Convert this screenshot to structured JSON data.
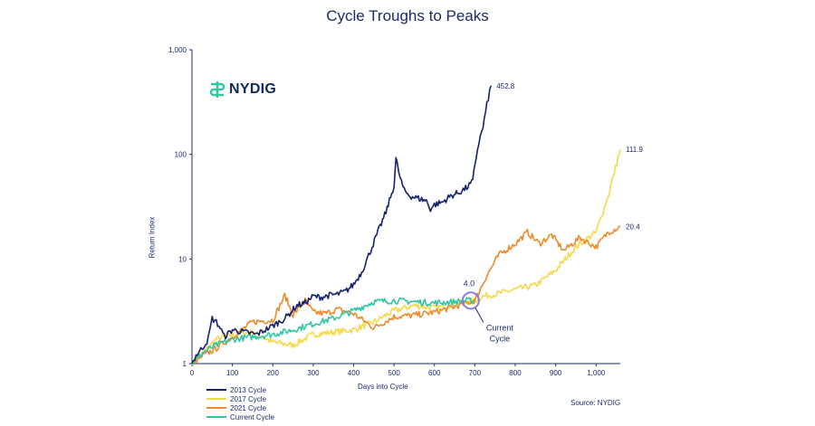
{
  "chart_data": {
    "type": "line",
    "title": "Cycle Troughs to Peaks",
    "xlabel": "Days into Cycle",
    "ylabel": "Return Index",
    "yscale": "log",
    "xlim": [
      0,
      1060
    ],
    "ylim": [
      1,
      1000
    ],
    "xticks": [
      0,
      100,
      200,
      300,
      400,
      500,
      600,
      700,
      800,
      900,
      1000
    ],
    "xtick_labels": [
      "0",
      "100",
      "200",
      "300",
      "400",
      "500",
      "600",
      "700",
      "800",
      "900",
      "1,000"
    ],
    "yticks": [
      1,
      10,
      100,
      1000
    ],
    "ytick_labels": [
      "1",
      "10",
      "100",
      "1,000"
    ],
    "series": [
      {
        "name": "2013 Cycle",
        "color": "#16216b",
        "end_label": "452.8",
        "x": [
          0,
          10,
          25,
          40,
          50,
          60,
          70,
          80,
          100,
          130,
          160,
          200,
          230,
          260,
          280,
          300,
          320,
          340,
          360,
          380,
          400,
          420,
          440,
          460,
          480,
          500,
          505,
          515,
          525,
          540,
          560,
          580,
          590,
          600,
          620,
          640,
          660,
          680,
          695,
          700,
          710,
          720,
          730,
          740
        ],
        "values": [
          1.0,
          1.2,
          1.4,
          1.7,
          2.7,
          2.5,
          2.2,
          1.8,
          2.1,
          2.0,
          1.9,
          2.3,
          2.7,
          3.6,
          3.8,
          4.4,
          4.3,
          4.5,
          4.6,
          4.9,
          5.7,
          7.5,
          11.5,
          18.0,
          28.0,
          50.0,
          90.0,
          60.0,
          45.0,
          40.0,
          38.0,
          36.0,
          30.0,
          33.0,
          35.0,
          40.0,
          43.0,
          48.0,
          55.0,
          80.0,
          130.0,
          180.0,
          300.0,
          452.8
        ]
      },
      {
        "name": "2017 Cycle",
        "color": "#f5d94a",
        "end_label": "111.9",
        "x": [
          0,
          30,
          60,
          100,
          150,
          200,
          250,
          300,
          350,
          400,
          450,
          500,
          550,
          600,
          650,
          700,
          720,
          750,
          800,
          850,
          900,
          950,
          1000,
          1030,
          1060
        ],
        "values": [
          1.0,
          1.3,
          1.7,
          1.9,
          2.0,
          1.6,
          1.5,
          1.9,
          2.0,
          2.1,
          2.5,
          3.2,
          3.6,
          3.4,
          3.7,
          4.0,
          4.4,
          4.6,
          5.1,
          5.6,
          7.8,
          13.0,
          18.0,
          40.0,
          111.9
        ]
      },
      {
        "name": "2021 Cycle",
        "color": "#ef8a2c",
        "end_label": "20.4",
        "x": [
          0,
          30,
          60,
          100,
          150,
          200,
          230,
          250,
          280,
          300,
          330,
          360,
          400,
          450,
          500,
          550,
          600,
          650,
          680,
          700,
          730,
          760,
          800,
          830,
          860,
          890,
          920,
          960,
          1000,
          1030,
          1060
        ],
        "values": [
          1.0,
          1.2,
          1.4,
          1.8,
          2.5,
          2.6,
          4.5,
          2.9,
          4.0,
          3.1,
          3.0,
          3.3,
          3.0,
          2.2,
          2.8,
          2.9,
          3.1,
          3.5,
          3.8,
          4.0,
          7.0,
          11.0,
          14.0,
          18.0,
          14.0,
          17.0,
          12.0,
          16.0,
          13.0,
          18.0,
          20.4
        ]
      },
      {
        "name": "Current Cycle",
        "color": "#2fc6a4",
        "end_label": "",
        "x": [
          0,
          30,
          60,
          100,
          150,
          200,
          250,
          300,
          350,
          400,
          450,
          500,
          550,
          600,
          650,
          680,
          700
        ],
        "values": [
          1.0,
          1.3,
          1.5,
          1.7,
          1.8,
          1.9,
          2.1,
          2.4,
          2.7,
          3.2,
          3.9,
          4.0,
          3.9,
          3.8,
          3.9,
          4.0,
          4.0
        ]
      }
    ],
    "annotations": [
      {
        "x": 690,
        "y": 4.0,
        "label": "4.0",
        "callout": "Current Cycle"
      }
    ]
  },
  "annotation": {
    "value": "4.0",
    "line1": "Current",
    "line2": "Cycle"
  },
  "logo_text": "NYDIG",
  "source": "Source: NYDIG"
}
